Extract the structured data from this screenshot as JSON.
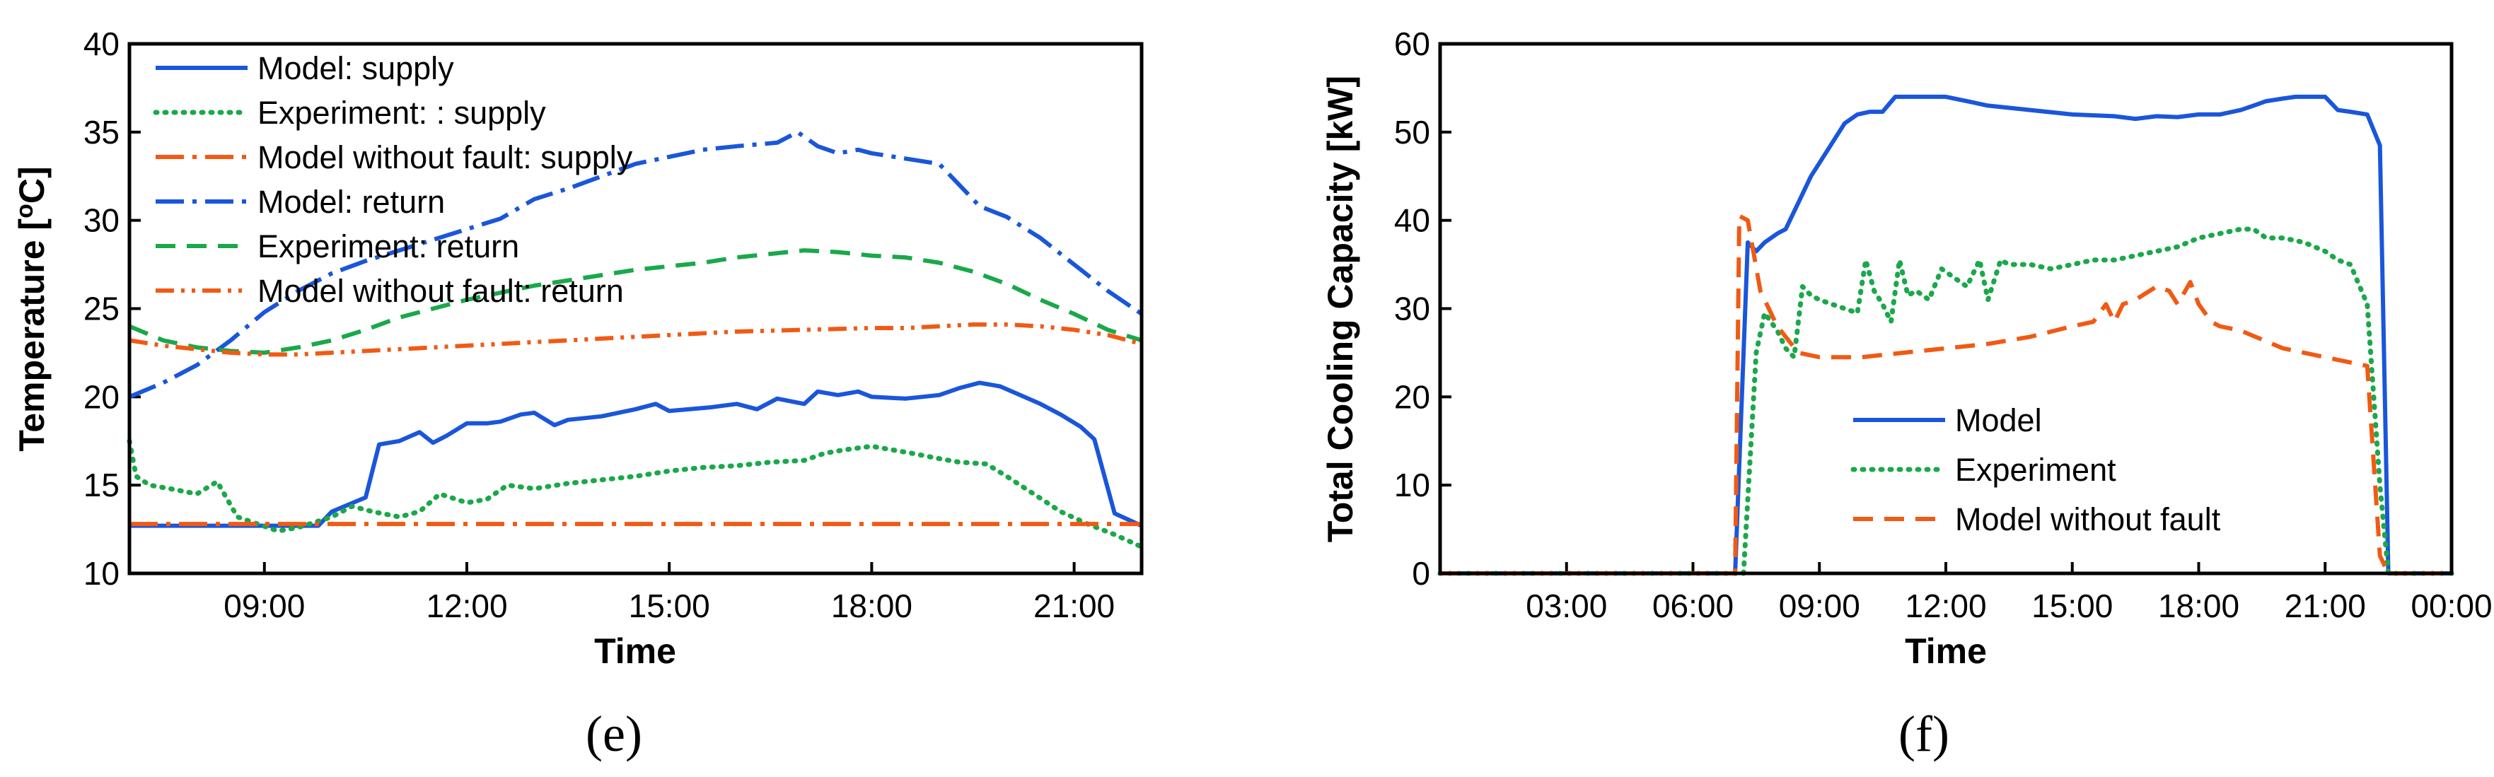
{
  "chart_data": [
    {
      "type": "line",
      "panel_label": "(e)",
      "xlabel": "Time",
      "ylabel_prefix": "Temperature [",
      "ylabel_sup": "o",
      "ylabel_suffix": "C]",
      "xlim": [
        7,
        22
      ],
      "ylim": [
        10,
        40
      ],
      "xticks": [
        {
          "v": 9,
          "label": "09:00"
        },
        {
          "v": 12,
          "label": "12:00"
        },
        {
          "v": 15,
          "label": "15:00"
        },
        {
          "v": 18,
          "label": "18:00"
        },
        {
          "v": 21,
          "label": "21:00"
        }
      ],
      "yticks": [
        {
          "v": 10,
          "label": "10"
        },
        {
          "v": 15,
          "label": "15"
        },
        {
          "v": 20,
          "label": "20"
        },
        {
          "v": 25,
          "label": "25"
        },
        {
          "v": 30,
          "label": "30"
        },
        {
          "v": 35,
          "label": "35"
        },
        {
          "v": 40,
          "label": "40"
        }
      ],
      "legend_position": "top-left",
      "series": [
        {
          "name": "Model: supply",
          "color": "#1a56db",
          "style": "solid",
          "x": [
            7,
            9,
            9.8,
            10,
            10.5,
            10.7,
            11,
            11.3,
            11.5,
            11.7,
            12,
            12.3,
            12.5,
            12.8,
            13,
            13.3,
            13.5,
            14,
            14.5,
            14.8,
            15,
            15.3,
            15.6,
            16,
            16.3,
            16.6,
            17,
            17.2,
            17.5,
            17.8,
            18,
            18.5,
            19,
            19.3,
            19.6,
            19.9,
            20.2,
            20.5,
            20.8,
            21.1,
            21.3,
            21.6,
            22
          ],
          "y": [
            12.7,
            12.7,
            12.7,
            13.5,
            14.3,
            17.3,
            17.5,
            18,
            17.4,
            17.8,
            18.5,
            18.5,
            18.6,
            19,
            19.1,
            18.4,
            18.7,
            18.9,
            19.3,
            19.6,
            19.2,
            19.3,
            19.4,
            19.6,
            19.3,
            19.9,
            19.6,
            20.3,
            20.1,
            20.3,
            20.0,
            19.9,
            20.1,
            20.5,
            20.8,
            20.6,
            20.1,
            19.6,
            19.0,
            18.3,
            17.6,
            13.4,
            12.7
          ]
        },
        {
          "name": "Experiment: : supply",
          "color": "#1aa84a",
          "style": "dotted",
          "x": [
            7,
            7.1,
            7.3,
            7.6,
            8,
            8.3,
            8.6,
            8.9,
            9.2,
            9.5,
            10,
            10.3,
            10.6,
            11,
            11.3,
            11.6,
            12,
            12.3,
            12.6,
            13,
            13.5,
            14,
            14.5,
            15,
            15.5,
            16,
            16.5,
            17,
            17.3,
            17.6,
            18,
            18.3,
            18.6,
            19,
            19.3,
            19.7,
            20,
            20.4,
            20.8,
            21.2,
            21.6,
            22
          ],
          "y": [
            17.5,
            15.5,
            15,
            14.8,
            14.5,
            15.2,
            13.2,
            12.8,
            12.4,
            12.6,
            13.2,
            13.8,
            13.5,
            13.2,
            13.5,
            14.5,
            14.0,
            14.2,
            15.0,
            14.8,
            15.1,
            15.3,
            15.5,
            15.8,
            16.0,
            16.1,
            16.3,
            16.4,
            16.8,
            17.0,
            17.2,
            17.0,
            16.8,
            16.5,
            16.3,
            16.2,
            15.5,
            14.5,
            13.5,
            12.8,
            12.2,
            11.5
          ]
        },
        {
          "name": "Model without fault: supply",
          "color": "#f05a14",
          "style": "dashdot",
          "x": [
            7,
            22
          ],
          "y": [
            12.8,
            12.8
          ]
        },
        {
          "name": "Model: return",
          "color": "#1a56db",
          "style": "dashdot",
          "x": [
            7,
            7.5,
            8,
            8.5,
            9,
            9.5,
            10,
            10.5,
            11,
            11.5,
            12,
            12.5,
            13,
            13.5,
            14,
            14.5,
            15,
            15.5,
            16,
            16.3,
            16.6,
            16.9,
            17.2,
            17.5,
            17.8,
            18,
            18.5,
            19,
            19.3,
            19.6,
            20,
            20.5,
            21,
            21.5,
            22
          ],
          "y": [
            20,
            20.8,
            21.8,
            23.2,
            24.8,
            26.0,
            27.0,
            27.7,
            28.3,
            28.9,
            29.5,
            30.1,
            31.2,
            31.8,
            32.5,
            33.2,
            33.6,
            34.0,
            34.2,
            34.3,
            34.4,
            35.0,
            34.2,
            33.8,
            34.0,
            33.8,
            33.5,
            33.2,
            32.0,
            30.8,
            30.2,
            29.0,
            27.5,
            26.0,
            24.7
          ]
        },
        {
          "name": "Experiment: return",
          "color": "#1aa84a",
          "style": "dashed",
          "x": [
            7,
            7.5,
            8,
            8.5,
            9,
            9.5,
            10,
            10.5,
            11,
            11.5,
            12,
            12.5,
            13,
            13.5,
            14,
            14.5,
            15,
            15.5,
            16,
            16.5,
            17,
            17.5,
            18,
            18.5,
            19,
            19.5,
            20,
            20.5,
            21,
            21.5,
            22
          ],
          "y": [
            24,
            23.2,
            22.8,
            22.6,
            22.5,
            22.8,
            23.2,
            23.8,
            24.5,
            25.0,
            25.5,
            25.9,
            26.3,
            26.6,
            26.9,
            27.2,
            27.4,
            27.6,
            27.9,
            28.1,
            28.3,
            28.2,
            28.0,
            27.9,
            27.6,
            27.1,
            26.4,
            25.5,
            24.7,
            23.8,
            23.2
          ]
        },
        {
          "name": "Model without fault: return",
          "color": "#f05a14",
          "style": "dashdotdot",
          "x": [
            7,
            7.5,
            8,
            8.5,
            9,
            9.5,
            10,
            11,
            12,
            13,
            14,
            15,
            16,
            17,
            18,
            18.5,
            19,
            19.5,
            20,
            20.5,
            21,
            21.5,
            22
          ],
          "y": [
            23.2,
            22.9,
            22.7,
            22.5,
            22.4,
            22.4,
            22.5,
            22.7,
            22.9,
            23.1,
            23.3,
            23.5,
            23.7,
            23.8,
            23.9,
            23.9,
            24.0,
            24.1,
            24.1,
            24.0,
            23.8,
            23.5,
            23.0
          ]
        }
      ]
    },
    {
      "type": "line",
      "panel_label": "(f)",
      "xlabel": "Time",
      "ylabel": "Total Cooling Capacity [kW]",
      "xlim": [
        0,
        24
      ],
      "ylim": [
        0,
        60
      ],
      "xticks": [
        {
          "v": 3,
          "label": "03:00"
        },
        {
          "v": 6,
          "label": "06:00"
        },
        {
          "v": 9,
          "label": "09:00"
        },
        {
          "v": 12,
          "label": "12:00"
        },
        {
          "v": 15,
          "label": "15:00"
        },
        {
          "v": 18,
          "label": "18:00"
        },
        {
          "v": 21,
          "label": "21:00"
        },
        {
          "v": 24,
          "label": "00:00"
        }
      ],
      "yticks": [
        {
          "v": 0,
          "label": "0"
        },
        {
          "v": 10,
          "label": "10"
        },
        {
          "v": 20,
          "label": "20"
        },
        {
          "v": 30,
          "label": "30"
        },
        {
          "v": 40,
          "label": "40"
        },
        {
          "v": 50,
          "label": "50"
        },
        {
          "v": 60,
          "label": "60"
        }
      ],
      "legend_position": "center-left",
      "series": [
        {
          "name": "Model",
          "color": "#1a56db",
          "style": "solid",
          "x": [
            0,
            7.0,
            7.3,
            7.5,
            7.7,
            8,
            8.2,
            8.5,
            8.8,
            9.2,
            9.6,
            9.9,
            10.2,
            10.5,
            10.8,
            12,
            12.5,
            13,
            14,
            15,
            16,
            16.5,
            17,
            17.5,
            18,
            18.5,
            19,
            19.3,
            19.6,
            20,
            20.3,
            20.6,
            21.0,
            21.3,
            21.6,
            22.0,
            22.3,
            22.5,
            24
          ],
          "y": [
            0,
            0,
            37.5,
            36.5,
            37.5,
            38.5,
            39,
            42,
            45,
            48,
            51,
            52,
            52.3,
            52.3,
            54,
            54,
            53.5,
            53,
            52.5,
            52,
            51.8,
            51.5,
            51.8,
            51.7,
            52,
            52,
            52.5,
            53,
            53.5,
            53.8,
            54,
            54,
            54,
            52.5,
            52.3,
            52,
            48.5,
            0,
            0
          ]
        },
        {
          "name": "Experiment",
          "color": "#1aa84a",
          "style": "dotted",
          "x": [
            0,
            7.2,
            7.5,
            7.7,
            8,
            8.2,
            8.4,
            8.6,
            8.8,
            9.0,
            9.3,
            9.6,
            9.9,
            10.1,
            10.3,
            10.5,
            10.7,
            10.9,
            11.1,
            11.3,
            11.6,
            11.9,
            12.2,
            12.5,
            12.8,
            13,
            13.3,
            13.5,
            14,
            14.5,
            15,
            15.5,
            16,
            16.5,
            17,
            17.5,
            18,
            18.5,
            19,
            19.3,
            19.6,
            20,
            20.5,
            21,
            21.3,
            21.6,
            22.0,
            22.3,
            22.5,
            24
          ],
          "y": [
            0,
            0,
            25,
            29.5,
            27.5,
            25.5,
            24.5,
            32.5,
            31.5,
            31,
            30.5,
            30,
            29.5,
            35.5,
            32,
            30.5,
            28.5,
            35.5,
            31.5,
            32,
            31,
            34.5,
            33.5,
            32.5,
            35.5,
            31,
            35.5,
            35,
            35,
            34.5,
            35,
            35.5,
            35.5,
            36,
            36.5,
            37,
            38,
            38.5,
            39,
            39,
            38,
            38,
            37.5,
            36.5,
            35.5,
            35,
            30.5,
            10,
            0,
            0
          ]
        },
        {
          "name": "Model without fault",
          "color": "#f05a14",
          "style": "dashed",
          "x": [
            0,
            7.0,
            7.1,
            7.3,
            7.6,
            8,
            8.5,
            9,
            10,
            11,
            12,
            13,
            14,
            15,
            15.5,
            15.8,
            16.0,
            16.2,
            16.5,
            17,
            17.3,
            17.5,
            17.8,
            18,
            18.3,
            18.5,
            19,
            19.5,
            20,
            20.5,
            21,
            21.5,
            22,
            22.3,
            22.5,
            24
          ],
          "y": [
            0,
            0,
            40.5,
            40,
            32,
            28,
            25,
            24.5,
            24.5,
            25,
            25.5,
            26,
            26.8,
            28,
            28.5,
            30.5,
            28.5,
            30.5,
            31,
            32.5,
            32,
            30.5,
            33,
            30.5,
            28.5,
            28,
            27.5,
            26.5,
            25.5,
            25,
            24.5,
            24,
            23.5,
            2,
            0,
            0
          ]
        }
      ]
    }
  ]
}
